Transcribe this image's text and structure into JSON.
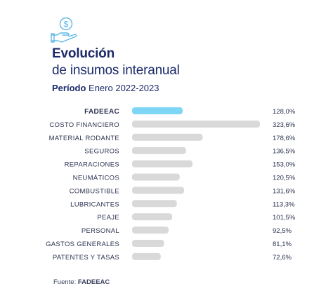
{
  "header": {
    "icon": "money-hand-icon",
    "title_line1": "Evolución",
    "title_line2": "de insumos interanual",
    "subtitle_label": "Período",
    "subtitle_value": "Enero 2022-2023"
  },
  "source": {
    "label": "Fuente:",
    "value": "FADEEAC"
  },
  "colors": {
    "highlight_bar": "#7fd6f4",
    "bar": "#d9d9d9",
    "text": "#2b3350",
    "title": "#1c2a6b"
  },
  "chart_data": {
    "type": "bar",
    "orientation": "horizontal",
    "title": "",
    "xlabel": "",
    "ylabel": "",
    "categories": [
      "FADEEAC",
      "COSTO FINANCIERO",
      "MATERIAL RODANTE",
      "SEGUROS",
      "REPARACIONES",
      "NEUMÁTICOS",
      "COMBUSTIBLE",
      "LUBRICANTES",
      "PEAJE",
      "PERSONAL",
      "GASTOS GENERALES",
      "PATENTES Y TASAS"
    ],
    "values": [
      128.0,
      323.6,
      178.6,
      136.5,
      153.0,
      120.5,
      131.6,
      113.3,
      101.5,
      92.5,
      81.1,
      72.6
    ],
    "value_labels": [
      "128,0%",
      "323,6%",
      "178,6%",
      "136,5%",
      "153,0%",
      "120,5%",
      "131,6%",
      "113,3%",
      "101,5%",
      "92,5%",
      "81,1%",
      "72,6%"
    ],
    "highlight": "FADEEAC",
    "xlim": [
      0,
      323.6
    ],
    "grid": false,
    "legend": "none"
  }
}
